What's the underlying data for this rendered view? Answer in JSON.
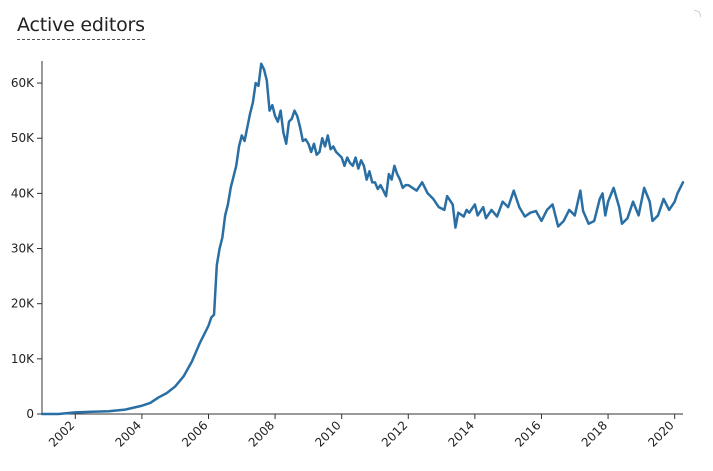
{
  "header": {
    "title": "Active editors"
  },
  "colors": {
    "line": "#2a6fa3",
    "axis": "#333333"
  },
  "chart_data": {
    "type": "line",
    "title": "Active editors",
    "xlabel": "",
    "ylabel": "",
    "grid": false,
    "xlim": [
      "2001-01",
      "2020-04"
    ],
    "ylim": [
      0,
      64000
    ],
    "y_ticks": [
      0,
      10000,
      20000,
      30000,
      40000,
      50000,
      60000
    ],
    "y_tick_labels": [
      "0",
      "10K",
      "20K",
      "30K",
      "40K",
      "50K",
      "60K"
    ],
    "x_ticks": [
      "2002-01",
      "2004-01",
      "2006-01",
      "2008-01",
      "2010-01",
      "2012-01",
      "2014-01",
      "2016-01",
      "2018-01",
      "2020-01"
    ],
    "x_tick_labels": [
      "2002",
      "2004",
      "2006",
      "2008",
      "2010",
      "2012",
      "2014",
      "2016",
      "2018",
      "2020"
    ],
    "series": [
      {
        "values": [
          [
            "2001-01",
            0
          ],
          [
            "2001-07",
            0
          ],
          [
            "2002-01",
            300
          ],
          [
            "2002-07",
            400
          ],
          [
            "2003-01",
            500
          ],
          [
            "2003-07",
            800
          ],
          [
            "2004-01",
            1500
          ],
          [
            "2004-04",
            2000
          ],
          [
            "2004-07",
            3000
          ],
          [
            "2004-10",
            3800
          ],
          [
            "2005-01",
            5000
          ],
          [
            "2005-04",
            6800
          ],
          [
            "2005-07",
            9500
          ],
          [
            "2005-10",
            13000
          ],
          [
            "2006-01",
            16000
          ],
          [
            "2006-02",
            17500
          ],
          [
            "2006-03",
            18000
          ],
          [
            "2006-04",
            27000
          ],
          [
            "2006-05",
            30000
          ],
          [
            "2006-06",
            32000
          ],
          [
            "2006-07",
            36000
          ],
          [
            "2006-08",
            38000
          ],
          [
            "2006-09",
            41000
          ],
          [
            "2006-10",
            43000
          ],
          [
            "2006-11",
            45000
          ],
          [
            "2006-12",
            48500
          ],
          [
            "2007-01",
            50500
          ],
          [
            "2007-02",
            49500
          ],
          [
            "2007-03",
            52000
          ],
          [
            "2007-04",
            54500
          ],
          [
            "2007-05",
            56500
          ],
          [
            "2007-06",
            60000
          ],
          [
            "2007-07",
            59500
          ],
          [
            "2007-08",
            63500
          ],
          [
            "2007-09",
            62500
          ],
          [
            "2007-10",
            60500
          ],
          [
            "2007-11",
            55000
          ],
          [
            "2007-12",
            56000
          ],
          [
            "2008-01",
            54000
          ],
          [
            "2008-02",
            53000
          ],
          [
            "2008-03",
            55000
          ],
          [
            "2008-04",
            51000
          ],
          [
            "2008-05",
            49000
          ],
          [
            "2008-06",
            53000
          ],
          [
            "2008-07",
            53500
          ],
          [
            "2008-08",
            55000
          ],
          [
            "2008-09",
            54000
          ],
          [
            "2008-10",
            52000
          ],
          [
            "2008-11",
            49500
          ],
          [
            "2008-12",
            49800
          ],
          [
            "2009-01",
            49000
          ],
          [
            "2009-02",
            47500
          ],
          [
            "2009-03",
            49000
          ],
          [
            "2009-04",
            47000
          ],
          [
            "2009-05",
            47500
          ],
          [
            "2009-06",
            50000
          ],
          [
            "2009-07",
            48500
          ],
          [
            "2009-08",
            50500
          ],
          [
            "2009-09",
            48000
          ],
          [
            "2009-10",
            48500
          ],
          [
            "2009-11",
            47500
          ],
          [
            "2009-12",
            47000
          ],
          [
            "2010-01",
            46500
          ],
          [
            "2010-02",
            45000
          ],
          [
            "2010-03",
            46500
          ],
          [
            "2010-04",
            45500
          ],
          [
            "2010-05",
            45000
          ],
          [
            "2010-06",
            46500
          ],
          [
            "2010-07",
            44500
          ],
          [
            "2010-08",
            46000
          ],
          [
            "2010-09",
            45000
          ],
          [
            "2010-10",
            42500
          ],
          [
            "2010-11",
            44000
          ],
          [
            "2010-12",
            42000
          ],
          [
            "2011-01",
            42000
          ],
          [
            "2011-02",
            40800
          ],
          [
            "2011-03",
            41500
          ],
          [
            "2011-04",
            40500
          ],
          [
            "2011-05",
            39500
          ],
          [
            "2011-06",
            43500
          ],
          [
            "2011-07",
            42500
          ],
          [
            "2011-08",
            45000
          ],
          [
            "2011-09",
            43500
          ],
          [
            "2011-10",
            42500
          ],
          [
            "2011-11",
            41000
          ],
          [
            "2011-12",
            41500
          ],
          [
            "2012-01",
            41500
          ],
          [
            "2012-04",
            40500
          ],
          [
            "2012-06",
            42000
          ],
          [
            "2012-08",
            40000
          ],
          [
            "2012-10",
            39000
          ],
          [
            "2012-12",
            37500
          ],
          [
            "2013-02",
            37000
          ],
          [
            "2013-03",
            39500
          ],
          [
            "2013-05",
            38000
          ],
          [
            "2013-06",
            33800
          ],
          [
            "2013-07",
            36500
          ],
          [
            "2013-09",
            35800
          ],
          [
            "2013-10",
            37000
          ],
          [
            "2013-11",
            36500
          ],
          [
            "2014-01",
            38000
          ],
          [
            "2014-02",
            36000
          ],
          [
            "2014-04",
            37500
          ],
          [
            "2014-05",
            35500
          ],
          [
            "2014-07",
            37000
          ],
          [
            "2014-09",
            35800
          ],
          [
            "2014-11",
            38500
          ],
          [
            "2015-01",
            37500
          ],
          [
            "2015-03",
            40500
          ],
          [
            "2015-05",
            37500
          ],
          [
            "2015-07",
            35800
          ],
          [
            "2015-09",
            36500
          ],
          [
            "2015-11",
            36800
          ],
          [
            "2016-01",
            35000
          ],
          [
            "2016-03",
            37000
          ],
          [
            "2016-05",
            38000
          ],
          [
            "2016-07",
            34000
          ],
          [
            "2016-09",
            35000
          ],
          [
            "2016-11",
            37000
          ],
          [
            "2017-01",
            36000
          ],
          [
            "2017-03",
            40500
          ],
          [
            "2017-04",
            36800
          ],
          [
            "2017-06",
            34500
          ],
          [
            "2017-08",
            35000
          ],
          [
            "2017-10",
            39000
          ],
          [
            "2017-11",
            40000
          ],
          [
            "2017-12",
            36000
          ],
          [
            "2018-01",
            38500
          ],
          [
            "2018-03",
            41000
          ],
          [
            "2018-05",
            37500
          ],
          [
            "2018-06",
            34500
          ],
          [
            "2018-08",
            35500
          ],
          [
            "2018-10",
            38500
          ],
          [
            "2018-12",
            36000
          ],
          [
            "2019-02",
            41000
          ],
          [
            "2019-04",
            38500
          ],
          [
            "2019-05",
            35000
          ],
          [
            "2019-07",
            36000
          ],
          [
            "2019-09",
            39000
          ],
          [
            "2019-11",
            37000
          ],
          [
            "2020-01",
            38500
          ],
          [
            "2020-02",
            40000
          ],
          [
            "2020-04",
            42000
          ]
        ]
      }
    ]
  }
}
